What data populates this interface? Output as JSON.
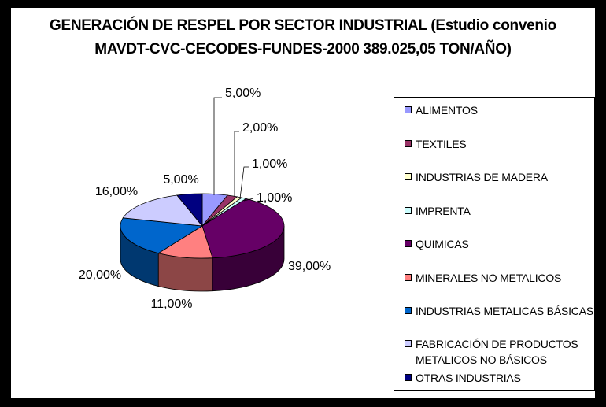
{
  "chart_data": {
    "type": "pie",
    "title": "GENERACIÓN DE RESPEL POR SECTOR INDUSTRIAL (Estudio convenio",
    "subtitle": "MAVDT-CVC-CECODES-FUNDES-2000  389.025,05 TON/AÑO)",
    "slices": [
      {
        "name": "ALIMENTOS",
        "value": 5.0,
        "label": "5,00%",
        "color": "#9999FF"
      },
      {
        "name": "TEXTILES",
        "value": 2.0,
        "label": "2,00%",
        "color": "#993366"
      },
      {
        "name": "INDUSTRIAS DE MADERA",
        "value": 1.0,
        "label": "1,00%",
        "color": "#FFFFCC"
      },
      {
        "name": "IMPRENTA",
        "value": 1.0,
        "label": "1,00%",
        "color": "#CCFFFF"
      },
      {
        "name": "QUIMICAS",
        "value": 39.0,
        "label": "39,00%",
        "color": "#660066"
      },
      {
        "name": "MINERALES NO METALICOS",
        "value": 11.0,
        "label": "11,00%",
        "color": "#FF8080"
      },
      {
        "name": "INDUSTRIAS METALICAS BÁSICAS",
        "value": 20.0,
        "label": "20,00%",
        "color": "#0066CC"
      },
      {
        "name": "FABRICACIÓN DE PRODUCTOS METALICOS NO BÁSICOS",
        "value": 16.0,
        "label": "16,00%",
        "color": "#CCCCFF"
      },
      {
        "name": "OTRAS INDUSTRIAS",
        "value": 5.0,
        "label": "5,00%",
        "color": "#000080"
      }
    ],
    "legend_position": "right",
    "style": "3d-pie"
  },
  "legend": {
    "items": [
      {
        "label": "ALIMENTOS"
      },
      {
        "label": "TEXTILES"
      },
      {
        "label": "INDUSTRIAS DE MADERA"
      },
      {
        "label": "IMPRENTA"
      },
      {
        "label": "QUIMICAS"
      },
      {
        "label": "MINERALES NO METALICOS"
      },
      {
        "label": "INDUSTRIAS METALICAS BÁSICAS"
      },
      {
        "label": "FABRICACIÓN DE PRODUCTOS\nMETALICOS NO BÁSICOS"
      },
      {
        "label": "OTRAS INDUSTRIAS"
      }
    ]
  }
}
